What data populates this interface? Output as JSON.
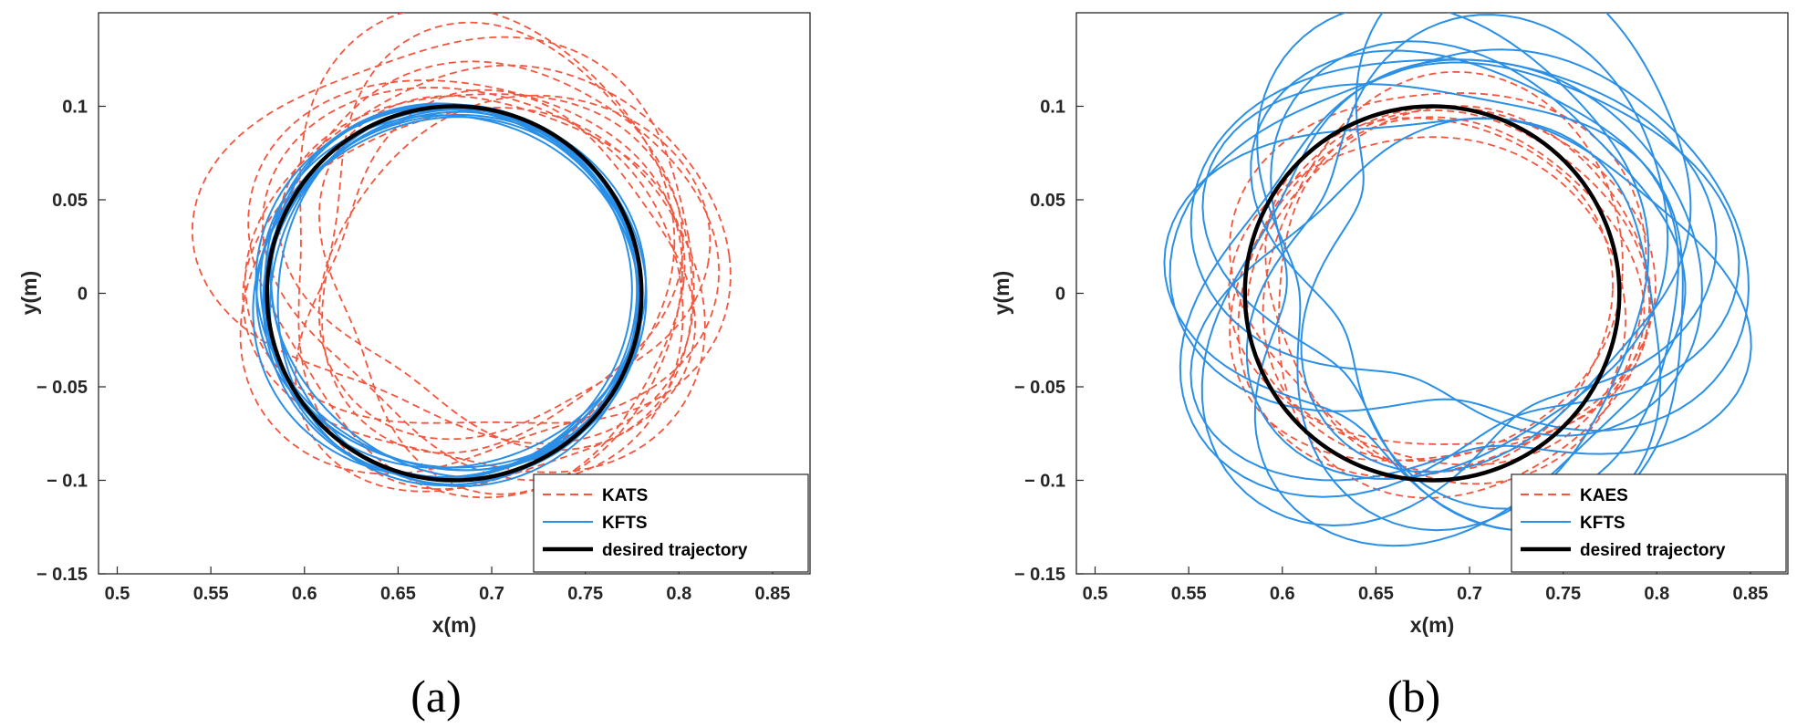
{
  "colors": {
    "kats": "#f4553d",
    "kaes": "#f4553d",
    "kfts": "#2a8fe6",
    "desired": "#000000",
    "axis": "#262626"
  },
  "chart_data": [
    {
      "type": "line",
      "panel_label": "(a)",
      "xlabel": "x(m)",
      "ylabel": "y(m)",
      "xlim": [
        0.49,
        0.87
      ],
      "ylim": [
        -0.15,
        0.15
      ],
      "xticks": [
        0.5,
        0.55,
        0.6,
        0.65,
        0.7,
        0.75,
        0.8,
        0.85
      ],
      "xtick_labels": [
        "0.5",
        "0.55",
        "0.6",
        "0.65",
        "0.7",
        "0.75",
        "0.8",
        "0.85"
      ],
      "yticks": [
        -0.15,
        -0.1,
        -0.05,
        0,
        0.05,
        0.1
      ],
      "ytick_labels": [
        "− 0.15",
        "− 0.1",
        "− 0.05",
        "0",
        "0.05",
        "0.1"
      ],
      "legend_position": "bottom-right",
      "series": [
        {
          "name": "KATS",
          "color_key": "kats",
          "style": "dashed",
          "loops": [
            {
              "cx": 0.69,
              "cy": 0.012,
              "rx": 0.118,
              "ry": 0.112,
              "phase": 0.6,
              "a2": 0.01,
              "a3": 0.008
            },
            {
              "cx": 0.7,
              "cy": 0.02,
              "rx": 0.115,
              "ry": 0.108,
              "phase": 1.4,
              "a2": 0.012,
              "a3": 0.006
            },
            {
              "cx": 0.685,
              "cy": 0.03,
              "rx": 0.125,
              "ry": 0.11,
              "phase": 2.3,
              "a2": 0.008,
              "a3": 0.01
            },
            {
              "cx": 0.695,
              "cy": 0.01,
              "rx": 0.108,
              "ry": 0.102,
              "phase": 3.1,
              "a2": 0.014,
              "a3": 0.005
            },
            {
              "cx": 0.705,
              "cy": 0.005,
              "rx": 0.1,
              "ry": 0.098,
              "phase": 4.0,
              "a2": 0.009,
              "a3": 0.009
            },
            {
              "cx": 0.69,
              "cy": 0.025,
              "rx": 0.112,
              "ry": 0.115,
              "phase": 4.8,
              "a2": 0.011,
              "a3": 0.007
            },
            {
              "cx": 0.7,
              "cy": -0.005,
              "rx": 0.106,
              "ry": 0.1,
              "phase": 5.6,
              "a2": 0.007,
              "a3": 0.011
            },
            {
              "cx": 0.71,
              "cy": 0.015,
              "rx": 0.098,
              "ry": 0.092,
              "phase": 0.3,
              "a2": 0.013,
              "a3": 0.004
            },
            {
              "cx": 0.695,
              "cy": 0.0,
              "rx": 0.112,
              "ry": 0.105,
              "phase": 1.9,
              "a2": 0.01,
              "a3": 0.006
            },
            {
              "cx": 0.705,
              "cy": 0.018,
              "rx": 0.104,
              "ry": 0.096,
              "phase": 2.8,
              "a2": 0.012,
              "a3": 0.008
            },
            {
              "cx": 0.688,
              "cy": 0.008,
              "rx": 0.118,
              "ry": 0.106,
              "phase": 3.7,
              "a2": 0.008,
              "a3": 0.006
            },
            {
              "cx": 0.7,
              "cy": 0.028,
              "rx": 0.102,
              "ry": 0.104,
              "phase": 5.1,
              "a2": 0.009,
              "a3": 0.009
            }
          ]
        },
        {
          "name": "KFTS",
          "color_key": "kfts",
          "style": "solid",
          "loops": [
            {
              "cx": 0.678,
              "cy": 0.0,
              "rx": 0.101,
              "ry": 0.099,
              "phase": 0.0,
              "a2": 0.002,
              "a3": 0.001
            },
            {
              "cx": 0.68,
              "cy": 0.002,
              "rx": 0.1,
              "ry": 0.097,
              "phase": 0.5,
              "a2": 0.003,
              "a3": 0.001
            },
            {
              "cx": 0.676,
              "cy": -0.002,
              "rx": 0.102,
              "ry": 0.1,
              "phase": 1.0,
              "a2": 0.002,
              "a3": 0.002
            },
            {
              "cx": 0.681,
              "cy": 0.001,
              "rx": 0.099,
              "ry": 0.098,
              "phase": 1.5,
              "a2": 0.003,
              "a3": 0.001
            },
            {
              "cx": 0.679,
              "cy": -0.001,
              "rx": 0.101,
              "ry": 0.096,
              "phase": 2.0,
              "a2": 0.002,
              "a3": 0.002
            },
            {
              "cx": 0.677,
              "cy": 0.003,
              "rx": 0.1,
              "ry": 0.099,
              "phase": 2.5,
              "a2": 0.003,
              "a3": 0.001
            },
            {
              "cx": 0.682,
              "cy": 0.0,
              "rx": 0.098,
              "ry": 0.097,
              "phase": 3.0,
              "a2": 0.002,
              "a3": 0.002
            },
            {
              "cx": 0.678,
              "cy": -0.003,
              "rx": 0.102,
              "ry": 0.098,
              "phase": 3.5,
              "a2": 0.003,
              "a3": 0.001
            },
            {
              "cx": 0.68,
              "cy": 0.001,
              "rx": 0.1,
              "ry": 0.1,
              "phase": 4.0,
              "a2": 0.002,
              "a3": 0.002
            },
            {
              "cx": 0.676,
              "cy": 0.002,
              "rx": 0.101,
              "ry": 0.097,
              "phase": 4.5,
              "a2": 0.003,
              "a3": 0.001
            },
            {
              "cx": 0.681,
              "cy": -0.002,
              "rx": 0.099,
              "ry": 0.099,
              "phase": 5.0,
              "a2": 0.002,
              "a3": 0.002
            },
            {
              "cx": 0.679,
              "cy": 0.0,
              "rx": 0.1,
              "ry": 0.098,
              "phase": 5.5,
              "a2": 0.003,
              "a3": 0.001
            }
          ]
        },
        {
          "name": "desired trajectory",
          "color_key": "desired",
          "style": "solid-thick",
          "circle": {
            "cx": 0.68,
            "cy": 0.0,
            "r": 0.1
          }
        }
      ]
    },
    {
      "type": "line",
      "panel_label": "(b)",
      "xlabel": "x(m)",
      "ylabel": "y(m)",
      "xlim": [
        0.49,
        0.87
      ],
      "ylim": [
        -0.15,
        0.15
      ],
      "xticks": [
        0.5,
        0.55,
        0.6,
        0.65,
        0.7,
        0.75,
        0.8,
        0.85
      ],
      "xtick_labels": [
        "0.5",
        "0.55",
        "0.6",
        "0.65",
        "0.7",
        "0.75",
        "0.8",
        "0.85"
      ],
      "yticks": [
        -0.15,
        -0.1,
        -0.05,
        0,
        0.05,
        0.1
      ],
      "ytick_labels": [
        "− 0.15",
        "− 0.1",
        "− 0.05",
        "0",
        "0.05",
        "0.1"
      ],
      "legend_position": "bottom-right",
      "series": [
        {
          "name": "KAES",
          "color_key": "kaes",
          "style": "dashed",
          "loops": [
            {
              "cx": 0.685,
              "cy": 0.0,
              "rx": 0.108,
              "ry": 0.1,
              "phase": 0.4,
              "a2": 0.006,
              "a3": 0.004
            },
            {
              "cx": 0.69,
              "cy": 0.005,
              "rx": 0.102,
              "ry": 0.095,
              "phase": 1.3,
              "a2": 0.005,
              "a3": 0.005
            },
            {
              "cx": 0.68,
              "cy": -0.004,
              "rx": 0.1,
              "ry": 0.092,
              "phase": 2.2,
              "a2": 0.007,
              "a3": 0.003
            },
            {
              "cx": 0.688,
              "cy": 0.008,
              "rx": 0.11,
              "ry": 0.104,
              "phase": 3.1,
              "a2": 0.004,
              "a3": 0.006
            },
            {
              "cx": 0.683,
              "cy": 0.002,
              "rx": 0.096,
              "ry": 0.09,
              "phase": 4.0,
              "a2": 0.006,
              "a3": 0.004
            },
            {
              "cx": 0.692,
              "cy": -0.006,
              "rx": 0.104,
              "ry": 0.098,
              "phase": 4.9,
              "a2": 0.005,
              "a3": 0.005
            },
            {
              "cx": 0.686,
              "cy": 0.012,
              "rx": 0.098,
              "ry": 0.1,
              "phase": 5.8,
              "a2": 0.007,
              "a3": 0.003
            },
            {
              "cx": 0.681,
              "cy": -0.002,
              "rx": 0.106,
              "ry": 0.094,
              "phase": 0.9,
              "a2": 0.004,
              "a3": 0.006
            }
          ]
        },
        {
          "name": "KFTS",
          "color_key": "kfts",
          "style": "solid",
          "loops": [
            {
              "cx": 0.69,
              "cy": 0.01,
              "rx": 0.13,
              "ry": 0.115,
              "phase": 0.5,
              "a2": 0.018,
              "a3": 0.012
            },
            {
              "cx": 0.7,
              "cy": 0.025,
              "rx": 0.125,
              "ry": 0.12,
              "phase": 1.6,
              "a2": 0.022,
              "a3": 0.01
            },
            {
              "cx": 0.685,
              "cy": -0.005,
              "rx": 0.12,
              "ry": 0.11,
              "phase": 2.7,
              "a2": 0.016,
              "a3": 0.014
            },
            {
              "cx": 0.705,
              "cy": 0.015,
              "rx": 0.118,
              "ry": 0.105,
              "phase": 3.8,
              "a2": 0.02,
              "a3": 0.011
            },
            {
              "cx": 0.692,
              "cy": 0.0,
              "rx": 0.128,
              "ry": 0.112,
              "phase": 4.9,
              "a2": 0.017,
              "a3": 0.013
            },
            {
              "cx": 0.698,
              "cy": 0.02,
              "rx": 0.115,
              "ry": 0.108,
              "phase": 5.7,
              "a2": 0.019,
              "a3": 0.009
            },
            {
              "cx": 0.688,
              "cy": 0.008,
              "rx": 0.122,
              "ry": 0.118,
              "phase": 0.2,
              "a2": 0.021,
              "a3": 0.012
            },
            {
              "cx": 0.702,
              "cy": -0.01,
              "rx": 0.126,
              "ry": 0.102,
              "phase": 1.1,
              "a2": 0.015,
              "a3": 0.015
            },
            {
              "cx": 0.694,
              "cy": 0.03,
              "rx": 0.112,
              "ry": 0.114,
              "phase": 2.1,
              "a2": 0.023,
              "a3": 0.008
            },
            {
              "cx": 0.7,
              "cy": 0.005,
              "rx": 0.124,
              "ry": 0.11,
              "phase": 3.3,
              "a2": 0.018,
              "a3": 0.013
            },
            {
              "cx": 0.69,
              "cy": 0.018,
              "rx": 0.118,
              "ry": 0.116,
              "phase": 4.4,
              "a2": 0.02,
              "a3": 0.01
            },
            {
              "cx": 0.715,
              "cy": 0.04,
              "rx": 0.115,
              "ry": 0.11,
              "phase": 5.2,
              "a2": 0.024,
              "a3": 0.012
            }
          ]
        },
        {
          "name": "desired trajectory",
          "color_key": "desired",
          "style": "solid-thick",
          "circle": {
            "cx": 0.68,
            "cy": 0.0,
            "r": 0.1
          }
        }
      ]
    }
  ]
}
